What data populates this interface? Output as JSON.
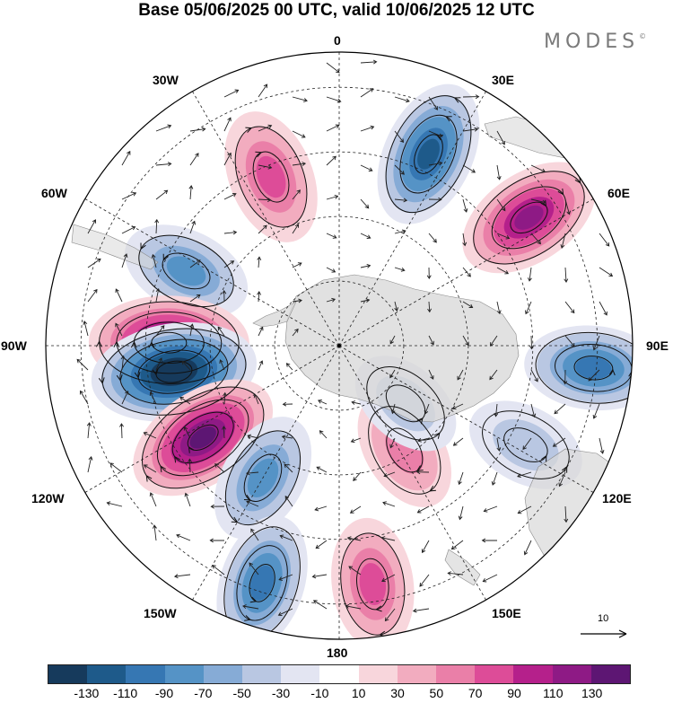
{
  "title": "Base 05/06/2025 00 UTC, valid 10/06/2025 12 UTC",
  "brand": "MODES",
  "brand_mark": "©",
  "longitude_labels": {
    "lon_0": "0",
    "lon_30e": "30E",
    "lon_60e": "60E",
    "lon_90e": "90E",
    "lon_120e": "120E",
    "lon_150e": "150E",
    "lon_180": "180",
    "lon_150w": "150W",
    "lon_120w": "120W",
    "lon_90w": "90W",
    "lon_60w": "60W",
    "lon_30w": "30W"
  },
  "reference_vector": {
    "value": "10"
  },
  "colorbar": {
    "colors": [
      "#163a5c",
      "#1e5a8a",
      "#3677b3",
      "#5593c6",
      "#86abd6",
      "#b9c7e2",
      "#e3e5f2",
      "#ffffff",
      "#f8d6dc",
      "#f2acbf",
      "#ea7fa8",
      "#dd4c98",
      "#b5208b",
      "#8e1a85",
      "#5d1673"
    ],
    "ticks": [
      "-130",
      "-110",
      "-90",
      "-70",
      "-50",
      "-30",
      "-10",
      "10",
      "30",
      "50",
      "70",
      "90",
      "110",
      "130"
    ]
  },
  "anomaly_centers": [
    {
      "lon": 338,
      "colat": 0.62,
      "value": 65
    },
    {
      "lon": 25,
      "colat": 0.72,
      "value": -95
    },
    {
      "lon": 56,
      "colat": 0.78,
      "value": 95
    },
    {
      "lon": 95,
      "colat": 0.87,
      "value": -70
    },
    {
      "lon": 296,
      "colat": 0.58,
      "value": -50
    },
    {
      "lon": 271,
      "colat": 0.58,
      "value": 125
    },
    {
      "lon": 261,
      "colat": 0.57,
      "value": -140
    },
    {
      "lon": 236,
      "colat": 0.56,
      "value": 115
    },
    {
      "lon": 210,
      "colat": 0.52,
      "value": -55
    },
    {
      "lon": 198,
      "colat": 0.85,
      "value": -70
    },
    {
      "lon": 172,
      "colat": 0.82,
      "value": 55
    },
    {
      "lon": 148,
      "colat": 0.42,
      "value": 35
    },
    {
      "lon": 118,
      "colat": 0.72,
      "value": -25
    },
    {
      "lon": 131,
      "colat": 0.3,
      "value": -15
    }
  ]
}
